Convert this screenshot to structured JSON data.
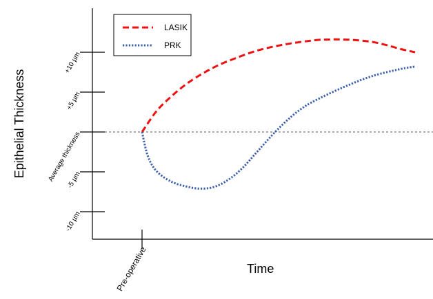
{
  "chart_data": {
    "type": "line",
    "title": "",
    "xlabel": "Time",
    "ylabel": "Epithelial Thickness",
    "x_tick_labels": [
      "Pre-operative"
    ],
    "y_tick_labels": [
      {
        "value": 10,
        "label": "+10 µm"
      },
      {
        "value": 5,
        "label": "+5 µm"
      },
      {
        "value": 0,
        "label": "Average thickness"
      },
      {
        "value": -5,
        "label": "-5 µm"
      },
      {
        "value": -10,
        "label": "-10 µm"
      }
    ],
    "reference_line": {
      "value": 0,
      "style": "dashed",
      "color": "#555555"
    },
    "xlim": [
      -7,
      100
    ],
    "ylim": [
      -14,
      16
    ],
    "legend": {
      "placement": "top-left"
    },
    "grid": false,
    "series": [
      {
        "name": "LASIK",
        "color": "#ee1111",
        "dash": "dashed",
        "x": [
          0,
          5,
          10,
          15,
          20,
          25,
          30,
          40,
          50,
          60,
          65,
          70,
          75,
          80,
          85,
          90,
          95
        ],
        "y": [
          0,
          2.6,
          4.4,
          5.9,
          7.1,
          8.1,
          8.9,
          10.2,
          11.0,
          11.5,
          11.6,
          11.6,
          11.5,
          11.3,
          10.9,
          10.4,
          10.0
        ]
      },
      {
        "name": "PRK",
        "color": "#3b5fa8",
        "dash": "dotted",
        "x": [
          0,
          2,
          5,
          10,
          15,
          20,
          25,
          30,
          35,
          40,
          45,
          50,
          55,
          60,
          70,
          80,
          90,
          95
        ],
        "y": [
          0,
          -3.0,
          -4.9,
          -6.2,
          -6.8,
          -7.1,
          -6.9,
          -6.0,
          -4.5,
          -2.5,
          -0.5,
          1.3,
          2.8,
          3.9,
          5.6,
          7.0,
          7.9,
          8.2
        ]
      }
    ]
  }
}
